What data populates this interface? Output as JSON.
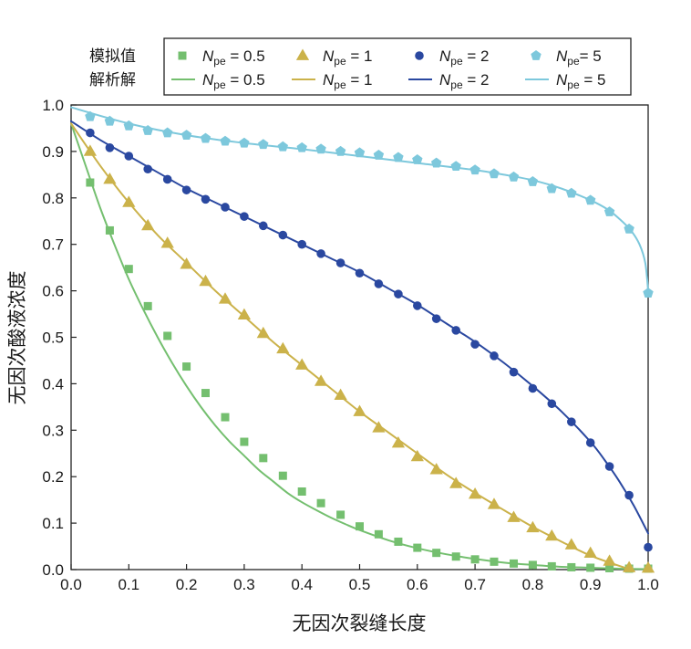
{
  "chart_data": {
    "type": "scatter",
    "title": "",
    "xlabel": "无因次裂缝长度",
    "ylabel": "无因次酸液浓度",
    "xlim": [
      0.0,
      1.0
    ],
    "ylim": [
      0.0,
      1.0
    ],
    "xticks": [
      0.0,
      0.1,
      0.2,
      0.3,
      0.4,
      0.5,
      0.6,
      0.7,
      0.8,
      0.9,
      1.0
    ],
    "xtick_labels": [
      "0.0",
      "0.1",
      "0.2",
      "0.3",
      "0.4",
      "0.5",
      "0.6",
      "0.7",
      "0.8",
      "0.9",
      "1.0"
    ],
    "yticks": [
      0.0,
      0.1,
      0.2,
      0.3,
      0.4,
      0.5,
      0.6,
      0.7,
      0.8,
      0.9,
      1.0
    ],
    "ytick_labels": [
      "0.0",
      "0.1",
      "0.2",
      "0.3",
      "0.4",
      "0.5",
      "0.6",
      "0.7",
      "0.8",
      "0.9",
      "1.0"
    ],
    "grid": false,
    "legend": {
      "placement": "top",
      "row_labels": [
        "模拟值",
        "解析解"
      ],
      "entries": [
        {
          "symbol": "N",
          "sub": "pe",
          "rest": " = 0.5"
        },
        {
          "symbol": "N",
          "sub": "pe",
          "rest": " = 1"
        },
        {
          "symbol": "N",
          "sub": "pe",
          "rest": " = 2"
        },
        {
          "symbol": "N",
          "sub": "pe",
          "rest": "= 5"
        }
      ],
      "line_entries": [
        {
          "symbol": "N",
          "sub": "pe",
          "rest": " = 0.5"
        },
        {
          "symbol": "N",
          "sub": "pe",
          "rest": " = 1"
        },
        {
          "symbol": "N",
          "sub": "pe",
          "rest": " = 2"
        },
        {
          "symbol": "N",
          "sub": "pe",
          "rest": " = 5"
        }
      ]
    },
    "series": [
      {
        "name": "Npe = 0.5",
        "marker": "square",
        "color": "#74bf6f",
        "simulated": {
          "x": [
            0.033,
            0.067,
            0.1,
            0.133,
            0.167,
            0.2,
            0.233,
            0.267,
            0.3,
            0.333,
            0.367,
            0.4,
            0.433,
            0.467,
            0.5,
            0.533,
            0.567,
            0.6,
            0.633,
            0.667,
            0.7,
            0.733,
            0.767,
            0.8,
            0.833,
            0.867,
            0.9,
            0.933,
            0.967,
            1.0
          ],
          "y": [
            0.833,
            0.73,
            0.647,
            0.567,
            0.503,
            0.437,
            0.38,
            0.328,
            0.275,
            0.24,
            0.202,
            0.168,
            0.143,
            0.118,
            0.093,
            0.076,
            0.06,
            0.047,
            0.036,
            0.028,
            0.022,
            0.017,
            0.013,
            0.01,
            0.007,
            0.005,
            0.004,
            0.003,
            0.002,
            0.002
          ]
        },
        "analytical": {
          "x": [
            0.0,
            0.025,
            0.05,
            0.075,
            0.1,
            0.125,
            0.15,
            0.175,
            0.2,
            0.225,
            0.25,
            0.275,
            0.3,
            0.325,
            0.35,
            0.375,
            0.4,
            0.425,
            0.45,
            0.475,
            0.5,
            0.55,
            0.6,
            0.65,
            0.7,
            0.75,
            0.8,
            0.85,
            0.9,
            0.95,
            1.0
          ],
          "y": [
            0.96,
            0.87,
            0.78,
            0.7,
            0.625,
            0.56,
            0.5,
            0.445,
            0.395,
            0.35,
            0.31,
            0.275,
            0.245,
            0.215,
            0.19,
            0.165,
            0.145,
            0.128,
            0.112,
            0.098,
            0.085,
            0.063,
            0.046,
            0.033,
            0.023,
            0.015,
            0.01,
            0.006,
            0.004,
            0.002,
            0.001
          ]
        }
      },
      {
        "name": "Npe = 1",
        "marker": "triangle",
        "color": "#cbb24a",
        "simulated": {
          "x": [
            0.033,
            0.067,
            0.1,
            0.133,
            0.167,
            0.2,
            0.233,
            0.267,
            0.3,
            0.333,
            0.367,
            0.4,
            0.433,
            0.467,
            0.5,
            0.533,
            0.567,
            0.6,
            0.633,
            0.667,
            0.7,
            0.733,
            0.767,
            0.8,
            0.833,
            0.867,
            0.9,
            0.933,
            0.967,
            1.0
          ],
          "y": [
            0.9,
            0.84,
            0.79,
            0.74,
            0.702,
            0.657,
            0.62,
            0.582,
            0.548,
            0.508,
            0.475,
            0.44,
            0.405,
            0.375,
            0.34,
            0.305,
            0.272,
            0.243,
            0.215,
            0.185,
            0.162,
            0.14,
            0.112,
            0.09,
            0.072,
            0.053,
            0.035,
            0.018,
            0.004,
            0.003
          ]
        },
        "analytical": {
          "x": [
            0.0,
            0.05,
            0.1,
            0.15,
            0.2,
            0.25,
            0.3,
            0.35,
            0.4,
            0.45,
            0.5,
            0.55,
            0.6,
            0.65,
            0.7,
            0.75,
            0.8,
            0.85,
            0.9,
            0.95,
            0.97
          ],
          "y": [
            0.96,
            0.87,
            0.79,
            0.72,
            0.66,
            0.6,
            0.545,
            0.49,
            0.44,
            0.39,
            0.34,
            0.295,
            0.25,
            0.205,
            0.165,
            0.128,
            0.092,
            0.06,
            0.03,
            0.008,
            0.0
          ]
        }
      },
      {
        "name": "Npe = 2",
        "marker": "circle",
        "color": "#2a48a0",
        "simulated": {
          "x": [
            0.033,
            0.067,
            0.1,
            0.133,
            0.167,
            0.2,
            0.233,
            0.267,
            0.3,
            0.333,
            0.367,
            0.4,
            0.433,
            0.467,
            0.5,
            0.533,
            0.567,
            0.6,
            0.633,
            0.667,
            0.7,
            0.733,
            0.767,
            0.8,
            0.833,
            0.867,
            0.9,
            0.933,
            0.967,
            1.0
          ],
          "y": [
            0.94,
            0.908,
            0.89,
            0.862,
            0.84,
            0.817,
            0.797,
            0.78,
            0.76,
            0.74,
            0.72,
            0.7,
            0.68,
            0.66,
            0.638,
            0.615,
            0.593,
            0.568,
            0.54,
            0.515,
            0.485,
            0.46,
            0.425,
            0.39,
            0.357,
            0.318,
            0.273,
            0.222,
            0.16,
            0.048
          ]
        },
        "analytical": {
          "x": [
            0.0,
            0.05,
            0.1,
            0.15,
            0.2,
            0.25,
            0.3,
            0.35,
            0.4,
            0.45,
            0.5,
            0.55,
            0.6,
            0.65,
            0.7,
            0.75,
            0.8,
            0.85,
            0.9,
            0.925,
            0.95,
            0.975,
            1.0
          ],
          "y": [
            0.965,
            0.925,
            0.89,
            0.855,
            0.82,
            0.79,
            0.76,
            0.73,
            0.7,
            0.67,
            0.64,
            0.605,
            0.57,
            0.53,
            0.49,
            0.445,
            0.395,
            0.34,
            0.275,
            0.235,
            0.19,
            0.138,
            0.078
          ]
        }
      },
      {
        "name": "Npe = 5",
        "marker": "pentagon",
        "color": "#7dc8dc",
        "simulated": {
          "x": [
            0.033,
            0.067,
            0.1,
            0.133,
            0.167,
            0.2,
            0.233,
            0.267,
            0.3,
            0.333,
            0.367,
            0.4,
            0.433,
            0.467,
            0.5,
            0.533,
            0.567,
            0.6,
            0.633,
            0.667,
            0.7,
            0.733,
            0.767,
            0.8,
            0.833,
            0.867,
            0.9,
            0.933,
            0.967,
            1.0
          ],
          "y": [
            0.975,
            0.965,
            0.955,
            0.945,
            0.94,
            0.935,
            0.928,
            0.922,
            0.918,
            0.915,
            0.91,
            0.908,
            0.905,
            0.9,
            0.897,
            0.892,
            0.887,
            0.882,
            0.875,
            0.868,
            0.86,
            0.852,
            0.845,
            0.835,
            0.82,
            0.81,
            0.795,
            0.77,
            0.733,
            0.595
          ]
        },
        "analytical": {
          "x": [
            0.0,
            0.1,
            0.2,
            0.3,
            0.4,
            0.5,
            0.6,
            0.7,
            0.75,
            0.8,
            0.85,
            0.9,
            0.93,
            0.95,
            0.97,
            0.985,
            0.995,
            1.0
          ],
          "y": [
            0.995,
            0.96,
            0.935,
            0.918,
            0.905,
            0.89,
            0.875,
            0.86,
            0.85,
            0.838,
            0.82,
            0.795,
            0.775,
            0.755,
            0.73,
            0.7,
            0.66,
            0.6
          ]
        }
      }
    ]
  }
}
